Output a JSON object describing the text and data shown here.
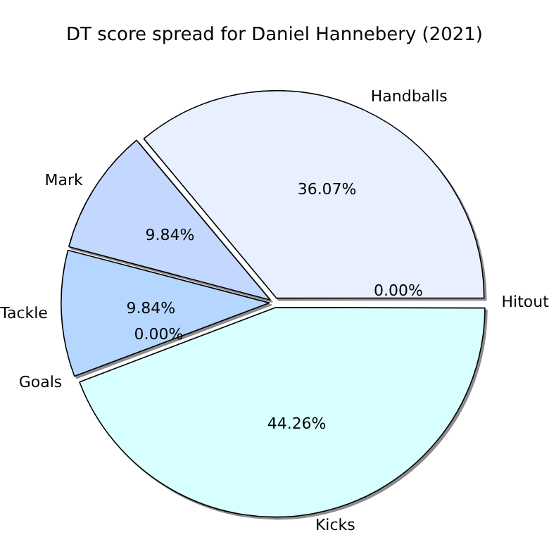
{
  "chart_data": {
    "type": "pie",
    "title": "DT score spread for Daniel Hannebery (2021)",
    "categories": [
      "Kicks",
      "Goals",
      "Tackle",
      "Mark",
      "Handballs",
      "Hitout"
    ],
    "values": [
      44.26,
      0,
      9.84,
      9.84,
      36.07,
      0
    ],
    "value_labels": [
      "44.26%",
      "0.00%",
      "9.84%",
      "9.84%",
      "36.07%",
      "0.00%"
    ],
    "colors": [
      "#d8ffff",
      "#c0e0ff",
      "#b4d6ff",
      "#c4d8ff",
      "#e8f0ff",
      "#d0e4ff"
    ],
    "legend": false
  }
}
